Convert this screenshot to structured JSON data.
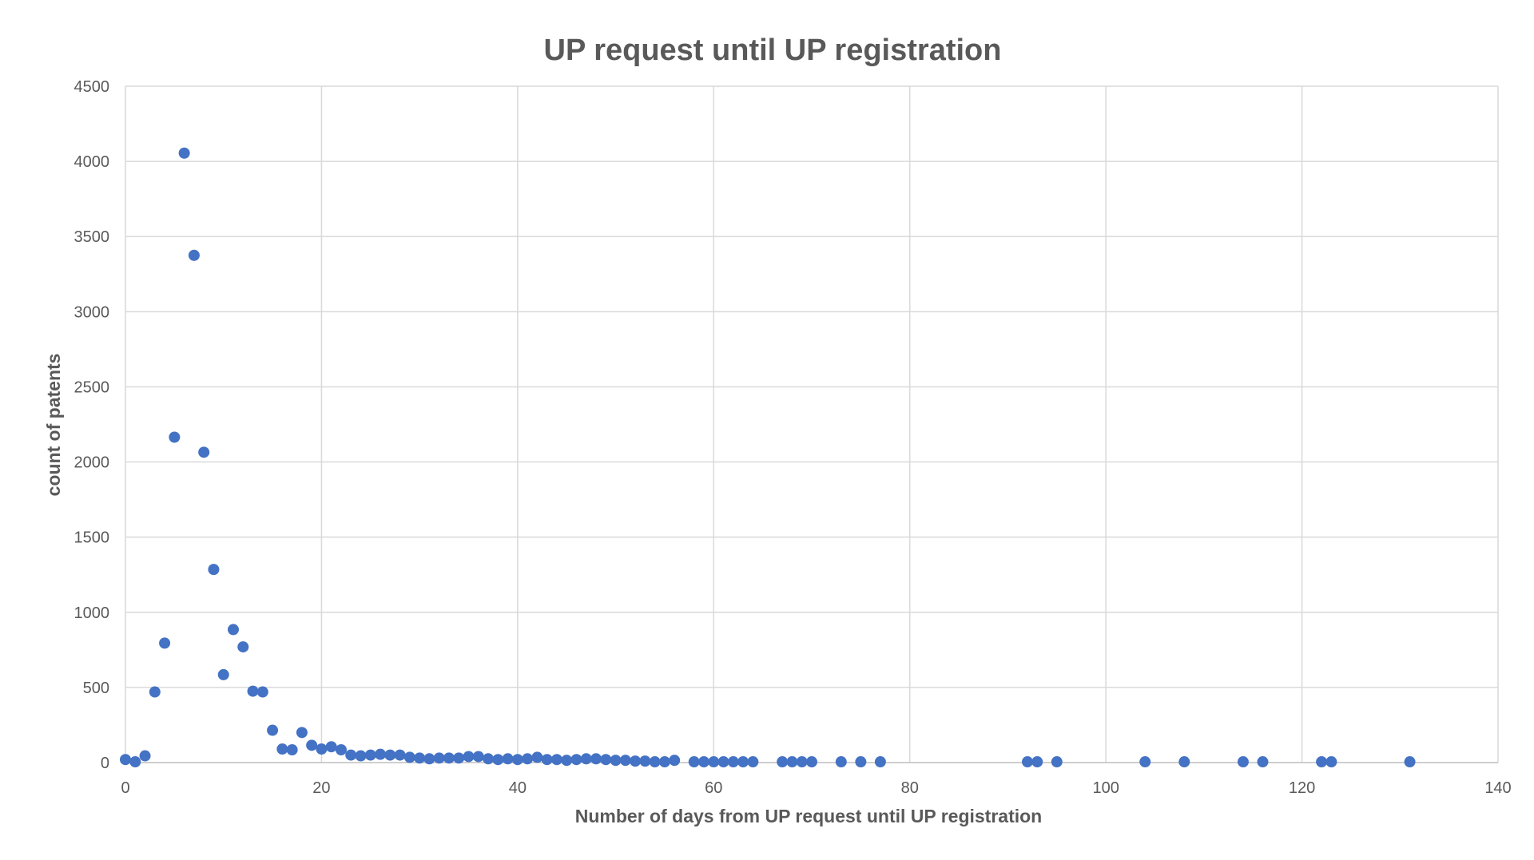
{
  "chart_data": {
    "type": "scatter",
    "title": "UP request until UP registration",
    "xlabel": "Number of days from UP request until UP registration",
    "ylabel": "count of patents",
    "xlim": [
      0,
      140
    ],
    "ylim": [
      0,
      4500
    ],
    "xticks": [
      0,
      20,
      40,
      60,
      80,
      100,
      120,
      140
    ],
    "yticks": [
      0,
      500,
      1000,
      1500,
      2000,
      2500,
      3000,
      3500,
      4000,
      4500
    ],
    "grid": true,
    "legend": "none",
    "marker_color": "#4472c4",
    "series": [
      {
        "points": [
          [
            0,
            20
          ],
          [
            1,
            5
          ],
          [
            2,
            45
          ],
          [
            3,
            470
          ],
          [
            4,
            795
          ],
          [
            5,
            2165
          ],
          [
            6,
            4055
          ],
          [
            7,
            3375
          ],
          [
            8,
            2065
          ],
          [
            9,
            1285
          ],
          [
            10,
            585
          ],
          [
            11,
            885
          ],
          [
            12,
            770
          ],
          [
            13,
            475
          ],
          [
            14,
            470
          ],
          [
            15,
            215
          ],
          [
            16,
            90
          ],
          [
            17,
            85
          ],
          [
            18,
            200
          ],
          [
            19,
            115
          ],
          [
            20,
            90
          ],
          [
            21,
            105
          ],
          [
            22,
            85
          ],
          [
            23,
            50
          ],
          [
            24,
            45
          ],
          [
            25,
            50
          ],
          [
            26,
            55
          ],
          [
            27,
            50
          ],
          [
            28,
            50
          ],
          [
            29,
            35
          ],
          [
            30,
            30
          ],
          [
            31,
            25
          ],
          [
            32,
            30
          ],
          [
            33,
            30
          ],
          [
            34,
            30
          ],
          [
            35,
            40
          ],
          [
            36,
            40
          ],
          [
            37,
            25
          ],
          [
            38,
            20
          ],
          [
            39,
            25
          ],
          [
            40,
            20
          ],
          [
            41,
            25
          ],
          [
            42,
            35
          ],
          [
            43,
            20
          ],
          [
            44,
            20
          ],
          [
            45,
            15
          ],
          [
            46,
            20
          ],
          [
            47,
            25
          ],
          [
            48,
            25
          ],
          [
            49,
            20
          ],
          [
            50,
            15
          ],
          [
            51,
            15
          ],
          [
            52,
            10
          ],
          [
            53,
            10
          ],
          [
            54,
            5
          ],
          [
            55,
            5
          ],
          [
            56,
            15
          ],
          [
            58,
            5
          ],
          [
            59,
            5
          ],
          [
            60,
            5
          ],
          [
            61,
            5
          ],
          [
            62,
            5
          ],
          [
            63,
            5
          ],
          [
            64,
            5
          ],
          [
            67,
            5
          ],
          [
            68,
            5
          ],
          [
            69,
            5
          ],
          [
            70,
            5
          ],
          [
            73,
            5
          ],
          [
            75,
            5
          ],
          [
            77,
            5
          ],
          [
            92,
            5
          ],
          [
            93,
            5
          ],
          [
            95,
            5
          ],
          [
            104,
            5
          ],
          [
            108,
            5
          ],
          [
            114,
            5
          ],
          [
            116,
            5
          ],
          [
            122,
            5
          ],
          [
            123,
            5
          ],
          [
            131,
            5
          ]
        ]
      }
    ]
  }
}
